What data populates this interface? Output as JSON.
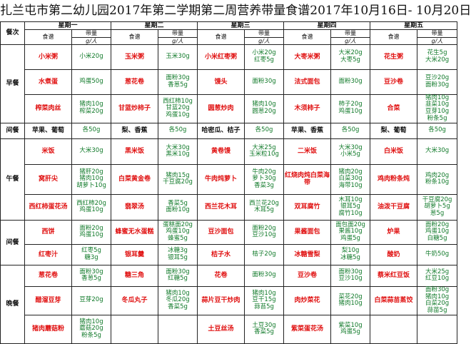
{
  "title": "扎兰屯市第二幼儿园2017年第二学期第二周营养带量食谱2017年10月16日- 10月20日",
  "headers": {
    "meal_col": "餐次",
    "days": [
      "星期一",
      "星期二",
      "星期三",
      "星期四",
      "星期五"
    ],
    "dish_label": "食谱",
    "qty_label": "带量",
    "unit": "g/人"
  },
  "colors": {
    "dish_red": "#e01010",
    "dish_black": "#111111",
    "qty_green": "#117a2a",
    "border": "#222222"
  },
  "meals": [
    {
      "name": "早餐",
      "rows": [
        [
          {
            "dish": "小米粥",
            "color": "red",
            "qty": "小米20g"
          },
          {
            "dish": "玉米粥",
            "color": "red",
            "qty": "玉米30g"
          },
          {
            "dish": "小米红枣粥",
            "color": "red",
            "qty": "小米20g\n红枣5g"
          },
          {
            "dish": "大枣米粥",
            "color": "red",
            "qty": "大米20g\n大枣5g"
          },
          {
            "dish": "花生粥",
            "color": "red",
            "qty": "花生5g\n大米20g"
          }
        ],
        [
          {
            "dish": "水煮蛋",
            "color": "red",
            "qty": "鸡蛋50g"
          },
          {
            "dish": "葱花卷",
            "color": "red",
            "qty": "面粉30g\n香葱5g"
          },
          {
            "dish": "馒头",
            "color": "red",
            "qty": "面粉30g"
          },
          {
            "dish": "法式面包",
            "color": "red",
            "qty": "面粉30g"
          },
          {
            "dish": "豆沙卷",
            "color": "red",
            "qty": "豆沙20g\n面粉30g"
          }
        ],
        [
          {
            "dish": "榨菜肉丝",
            "color": "red",
            "qty": "猪肉10g\n榨菜20g"
          },
          {
            "dish": "甘蓝炒柿子",
            "color": "red",
            "qty": "西红柿10g\n甘蓝20g\n鸡蛋10g"
          },
          {
            "dish": "圆葱炒肉",
            "color": "red",
            "qty": "猪肉10g\n圆葱20g"
          },
          {
            "dish": "木须柿子",
            "color": "red",
            "qty": "柿子20g\n鸡蛋10g"
          },
          {
            "dish": "合菜",
            "color": "red",
            "qty": "猪肉10g\n韭菜10g\n豆芽10g\n粉条5g"
          }
        ]
      ]
    },
    {
      "name": "间餐",
      "rows": [
        [
          {
            "dish": "苹果、葡萄",
            "color": "black",
            "qty": "各50g"
          },
          {
            "dish": "梨、香蕉",
            "color": "black",
            "qty": "各50g"
          },
          {
            "dish": "哈密瓜、桔子",
            "color": "black",
            "qty": "各50g"
          },
          {
            "dish": "苹果、香蕉",
            "color": "black",
            "qty": "各50g"
          },
          {
            "dish": "梨、葡萄",
            "color": "black",
            "qty": "各50g"
          }
        ]
      ]
    },
    {
      "name": "午餐",
      "rows": [
        [
          {
            "dish": "米饭",
            "color": "red",
            "qty": "大米30g"
          },
          {
            "dish": "黑米饭",
            "color": "red",
            "qty": "大米30g\n黑米10g"
          },
          {
            "dish": "黄卷馒",
            "color": "red",
            "qty": "大米25g\n玉米粒10g"
          },
          {
            "dish": "二米饭",
            "color": "red",
            "qty": "大米30g\n小米5g"
          },
          {
            "dish": "白米饭",
            "color": "red",
            "qty": "大米30g"
          }
        ],
        [
          {
            "dish": "窝肝尖",
            "color": "red",
            "qty": "猪肝20g\n猪肉10g\n胡萝卜10g"
          },
          {
            "dish": "白菜黄金卷",
            "color": "red",
            "qty": "猪肉15g\n干豆腐20g"
          },
          {
            "dish": "牛肉炖萝卜",
            "color": "red",
            "qty": "牛肉20g\n萝卜30g\n香菜3g"
          },
          {
            "dish": "红烧肉炖白菜海带",
            "color": "red",
            "qty": "猪肉20g\n白菜30g\n海带10g"
          },
          {
            "dish": "鸡肉粉条炖",
            "color": "red",
            "qty": "鸡肉20g\n粉条10g"
          }
        ],
        [
          {
            "dish": "西红柿蛋花汤",
            "color": "red",
            "qty": "西红柿20g\n鸡蛋10g"
          },
          {
            "dish": "翡翠汤",
            "color": "red",
            "qty": "香菜5g\n面粉10g"
          },
          {
            "dish": "西兰花木耳",
            "color": "red",
            "qty": "西兰花20g\n木耳5g"
          },
          {
            "dish": "双耳腐竹",
            "color": "red",
            "qty": "木耳10g\n银耳5g\n腐竹10g"
          },
          {
            "dish": "油泼干豆腐",
            "color": "red",
            "qty": "干豆腐20g\n胡萝卜5g\n葱5g"
          }
        ]
      ]
    },
    {
      "name": "间餐",
      "rows": [
        [
          {
            "dish": "西饼",
            "color": "red",
            "qty": "面粉20g\n鸡蛋10g"
          },
          {
            "dish": "蜂蜜无水蛋糕",
            "color": "red",
            "qty": "蛋糕面20g\n鸡蛋10g\n蜂蜜5g"
          },
          {
            "dish": "豆沙面包",
            "color": "red",
            "qty": "面粉20g\n豆沙10g"
          },
          {
            "dish": "果酱面包",
            "color": "red",
            "qty": "面包面20g\n果酱10g\n鸡蛋5g"
          },
          {
            "dish": "炉果",
            "color": "red",
            "qty": "面粉20g\n鸡蛋10g\n白糖5g"
          }
        ],
        [
          {
            "dish": "红枣汁",
            "color": "red",
            "qty": "红枣5g\n糖3g"
          },
          {
            "dish": "银耳羹",
            "color": "red",
            "qty": "冰糖3g\n银耳5g"
          },
          {
            "dish": "桔子水",
            "color": "red",
            "qty": "桔子20g"
          },
          {
            "dish": "冰糖雪梨",
            "color": "red",
            "qty": "梨10g\n冰糖5g"
          },
          {
            "dish": "酸奶",
            "color": "red",
            "qty": "牛奶50g"
          }
        ]
      ]
    },
    {
      "name": "晚餐",
      "rows": [
        [
          {
            "dish": "葱花卷",
            "color": "red",
            "qty": "面粉30g\n香葱5g"
          },
          {
            "dish": "糖三角",
            "color": "red",
            "qty": "面粉30g\n红糖5g"
          },
          {
            "dish": "花卷",
            "color": "red",
            "qty": "面粉30g"
          },
          {
            "dish": "豆沙卷",
            "color": "red",
            "qty": "面粉30g\n豆沙10g"
          },
          {
            "dish": "蔡米红豆饭",
            "color": "red",
            "qty": "大米25g\n红豆10g"
          }
        ],
        [
          {
            "dish": "醋溜豆芽",
            "color": "red",
            "qty": "豆芽20g"
          },
          {
            "dish": "冬瓜丸子",
            "color": "red",
            "qty": "猪肉10g\n冬瓜20g\n香菜5g"
          },
          {
            "dish": "蒜片豆干炒肉",
            "color": "red",
            "qty": "猪肉10g\n豆干15g\n蒜苔5g"
          },
          {
            "dish": "肉炒菜花",
            "color": "red",
            "qty": "菜花20g\n猪肉10g"
          },
          {
            "dish": "白菜蒜苗蒸饺",
            "color": "red",
            "qty": "面粉30g\n猪肉10g\n白菜20g\n蒜苗5g"
          }
        ],
        [
          {
            "dish": "猪肉蘑菇粉",
            "color": "red",
            "qty": "猪肉10g\n蘑菇20g\n粉条5g"
          },
          {
            "dish": "",
            "color": "red",
            "qty": ""
          },
          {
            "dish": "土豆丝汤",
            "color": "red",
            "qty": "土豆30g\n香菜5g"
          },
          {
            "dish": "紫菜蛋花汤",
            "color": "red",
            "qty": "紫菜10g\n鸡蛋5g"
          },
          {
            "dish": "",
            "color": "red",
            "qty": ""
          }
        ]
      ]
    }
  ]
}
